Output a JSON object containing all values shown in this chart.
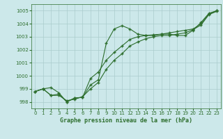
{
  "title": "Graphe pression niveau de la mer (hPa)",
  "bg_color": "#cce8ea",
  "grid_color": "#aacccc",
  "line_color": "#2d6e2d",
  "xlim": [
    -0.5,
    23.5
  ],
  "ylim": [
    997.5,
    1005.5
  ],
  "yticks": [
    998,
    999,
    1000,
    1001,
    1002,
    1003,
    1004,
    1005
  ],
  "xticks": [
    0,
    1,
    2,
    3,
    4,
    5,
    6,
    7,
    8,
    9,
    10,
    11,
    12,
    13,
    14,
    15,
    16,
    17,
    18,
    19,
    20,
    21,
    22,
    23
  ],
  "series1_x": [
    0,
    1,
    2,
    3,
    4,
    5,
    6,
    7,
    8,
    9,
    10,
    11,
    12,
    13,
    14,
    15,
    16,
    17,
    18,
    19,
    20,
    21,
    22,
    23
  ],
  "series1_y": [
    998.8,
    999.0,
    999.1,
    998.7,
    998.0,
    998.3,
    998.35,
    999.3,
    999.7,
    1002.5,
    1003.6,
    1003.85,
    1003.6,
    1003.2,
    1003.1,
    1003.1,
    1003.2,
    1003.2,
    1003.1,
    1003.1,
    1003.5,
    1004.1,
    1004.8,
    1005.0
  ],
  "series2_x": [
    0,
    1,
    2,
    3,
    4,
    5,
    6,
    7,
    8,
    9,
    10,
    11,
    12,
    13,
    14,
    15,
    16,
    17,
    18,
    19,
    20,
    21,
    22,
    23
  ],
  "series2_y": [
    998.8,
    999.0,
    998.5,
    998.6,
    998.0,
    998.3,
    998.35,
    999.8,
    1000.3,
    1001.2,
    1001.8,
    1002.3,
    1002.8,
    1003.0,
    1003.1,
    1003.15,
    1003.2,
    1003.3,
    1003.4,
    1003.5,
    1003.6,
    1004.0,
    1004.75,
    1005.0
  ],
  "series3_x": [
    0,
    1,
    2,
    3,
    4,
    5,
    6,
    7,
    8,
    9,
    10,
    11,
    12,
    13,
    14,
    15,
    16,
    17,
    18,
    19,
    20,
    21,
    22,
    23
  ],
  "series3_y": [
    998.8,
    999.0,
    998.5,
    998.5,
    998.1,
    998.2,
    998.4,
    999.0,
    999.5,
    1000.5,
    1001.2,
    1001.7,
    1002.3,
    1002.6,
    1002.85,
    1003.0,
    1003.1,
    1003.1,
    1003.2,
    1003.3,
    1003.55,
    1003.9,
    1004.7,
    1004.95
  ]
}
